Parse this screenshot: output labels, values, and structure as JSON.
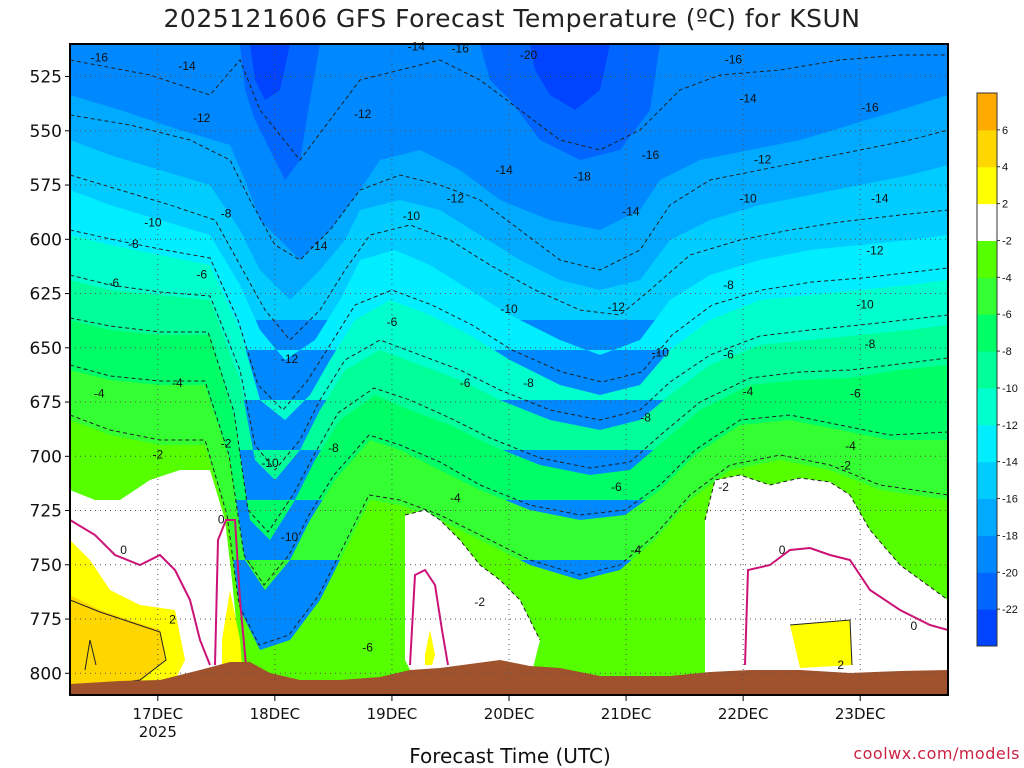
{
  "title": "2025121606 GFS Forecast Temperature (ºC) for KSUN",
  "x_axis_label": "Forecast Time (UTC)",
  "credit": "coolwx.com/models",
  "colors": {
    "terrain": "#a0522d",
    "freezing_line": "#cc1177",
    "scale": [
      "#0044ff",
      "#0066ff",
      "#0088ff",
      "#00aaff",
      "#00ccff",
      "#00eeff",
      "#00ffcc",
      "#00ff99",
      "#00ff66",
      "#33ff33",
      "#55ff00",
      "#ffffff",
      "#ffff00",
      "#ffd700",
      "#ffaa00"
    ]
  },
  "chart_data": {
    "type": "heatmap",
    "title": "2025121606 GFS Forecast Temperature (ºC) for KSUN",
    "xlabel": "Forecast Time (UTC)",
    "ylabel": "",
    "y_axis_inverted": true,
    "ylim": [
      810,
      510
    ],
    "y_ticks": [
      525,
      550,
      575,
      600,
      625,
      650,
      675,
      700,
      725,
      750,
      775,
      800
    ],
    "x_ticks": [
      {
        "label": "17DEC",
        "sub": "2025",
        "t": 18
      },
      {
        "label": "18DEC",
        "sub": "",
        "t": 42
      },
      {
        "label": "19DEC",
        "sub": "",
        "t": 66
      },
      {
        "label": "20DEC",
        "sub": "",
        "t": 90
      },
      {
        "label": "21DEC",
        "sub": "",
        "t": 114
      },
      {
        "label": "22DEC",
        "sub": "",
        "t": 138
      },
      {
        "label": "23DEC",
        "sub": "",
        "t": 162
      }
    ],
    "xlim": [
      0,
      180
    ],
    "grid": true,
    "colorbar": {
      "position": "right",
      "levels": [
        -24,
        -22,
        -20,
        -18,
        -16,
        -14,
        -12,
        -10,
        -8,
        -6,
        -4,
        -2,
        2,
        4,
        6,
        8
      ],
      "labels": [
        "6",
        "4",
        "2",
        "-2",
        "-4",
        "-6",
        "-8",
        "-10",
        "-12",
        "-14",
        "-16",
        "-18",
        "-20",
        "-22"
      ]
    },
    "contour_labels": [
      {
        "text": "-16",
        "t": 6,
        "p": 518
      },
      {
        "text": "-14",
        "t": 24,
        "p": 522
      },
      {
        "text": "-12",
        "t": 27,
        "p": 546
      },
      {
        "text": "-10",
        "t": 17,
        "p": 594
      },
      {
        "text": "-8",
        "t": 13,
        "p": 604
      },
      {
        "text": "-8",
        "t": 32,
        "p": 590
      },
      {
        "text": "-6",
        "t": 9,
        "p": 622
      },
      {
        "text": "-6",
        "t": 27,
        "p": 618
      },
      {
        "text": "-4",
        "t": 6,
        "p": 673
      },
      {
        "text": "-4",
        "t": 22,
        "p": 668
      },
      {
        "text": "-2",
        "t": 18,
        "p": 701
      },
      {
        "text": "-2",
        "t": 32,
        "p": 696
      },
      {
        "text": "0",
        "t": 11,
        "p": 745
      },
      {
        "text": "0",
        "t": 31,
        "p": 731
      },
      {
        "text": "2",
        "t": 21,
        "p": 777
      },
      {
        "text": "-14",
        "t": 51,
        "p": 605
      },
      {
        "text": "-12",
        "t": 45,
        "p": 657
      },
      {
        "text": "-10",
        "t": 41,
        "p": 705
      },
      {
        "text": "-10",
        "t": 45,
        "p": 739
      },
      {
        "text": "-8",
        "t": 54,
        "p": 698
      },
      {
        "text": "-12",
        "t": 60,
        "p": 544
      },
      {
        "text": "-10",
        "t": 70,
        "p": 591
      },
      {
        "text": "-6",
        "t": 66,
        "p": 640
      },
      {
        "text": "-6",
        "t": 61,
        "p": 790
      },
      {
        "text": "-14",
        "t": 71,
        "p": 513
      },
      {
        "text": "-16",
        "t": 80,
        "p": 514
      },
      {
        "text": "-20",
        "t": 94,
        "p": 517
      },
      {
        "text": "-14",
        "t": 89,
        "p": 570
      },
      {
        "text": "-12",
        "t": 79,
        "p": 583
      },
      {
        "text": "-10",
        "t": 90,
        "p": 634
      },
      {
        "text": "-6",
        "t": 81,
        "p": 668
      },
      {
        "text": "-8",
        "t": 94,
        "p": 668
      },
      {
        "text": "-4",
        "t": 79,
        "p": 721
      },
      {
        "text": "-2",
        "t": 84,
        "p": 769
      },
      {
        "text": "-18",
        "t": 105,
        "p": 573
      },
      {
        "text": "-16",
        "t": 119,
        "p": 563
      },
      {
        "text": "-14",
        "t": 115,
        "p": 589
      },
      {
        "text": "-12",
        "t": 112,
        "p": 633
      },
      {
        "text": "-10",
        "t": 121,
        "p": 654
      },
      {
        "text": "-8",
        "t": 118,
        "p": 684
      },
      {
        "text": "-6",
        "t": 112,
        "p": 716
      },
      {
        "text": "-4",
        "t": 116,
        "p": 745
      },
      {
        "text": "-16",
        "t": 136,
        "p": 519
      },
      {
        "text": "-14",
        "t": 139,
        "p": 537
      },
      {
        "text": "-12",
        "t": 142,
        "p": 565
      },
      {
        "text": "-10",
        "t": 139,
        "p": 583
      },
      {
        "text": "-8",
        "t": 135,
        "p": 623
      },
      {
        "text": "-6",
        "t": 135,
        "p": 655
      },
      {
        "text": "-4",
        "t": 139,
        "p": 672
      },
      {
        "text": "-2",
        "t": 134,
        "p": 716
      },
      {
        "text": "0",
        "t": 146,
        "p": 745
      },
      {
        "text": "-16",
        "t": 164,
        "p": 541
      },
      {
        "text": "-14",
        "t": 166,
        "p": 583
      },
      {
        "text": "-12",
        "t": 165,
        "p": 607
      },
      {
        "text": "-10",
        "t": 163,
        "p": 632
      },
      {
        "text": "-8",
        "t": 164,
        "p": 650
      },
      {
        "text": "-6",
        "t": 161,
        "p": 673
      },
      {
        "text": "-4",
        "t": 160,
        "p": 697
      },
      {
        "text": "-2",
        "t": 159,
        "p": 706
      },
      {
        "text": "0",
        "t": 173,
        "p": 780
      },
      {
        "text": "2",
        "t": 158,
        "p": 798
      }
    ]
  }
}
